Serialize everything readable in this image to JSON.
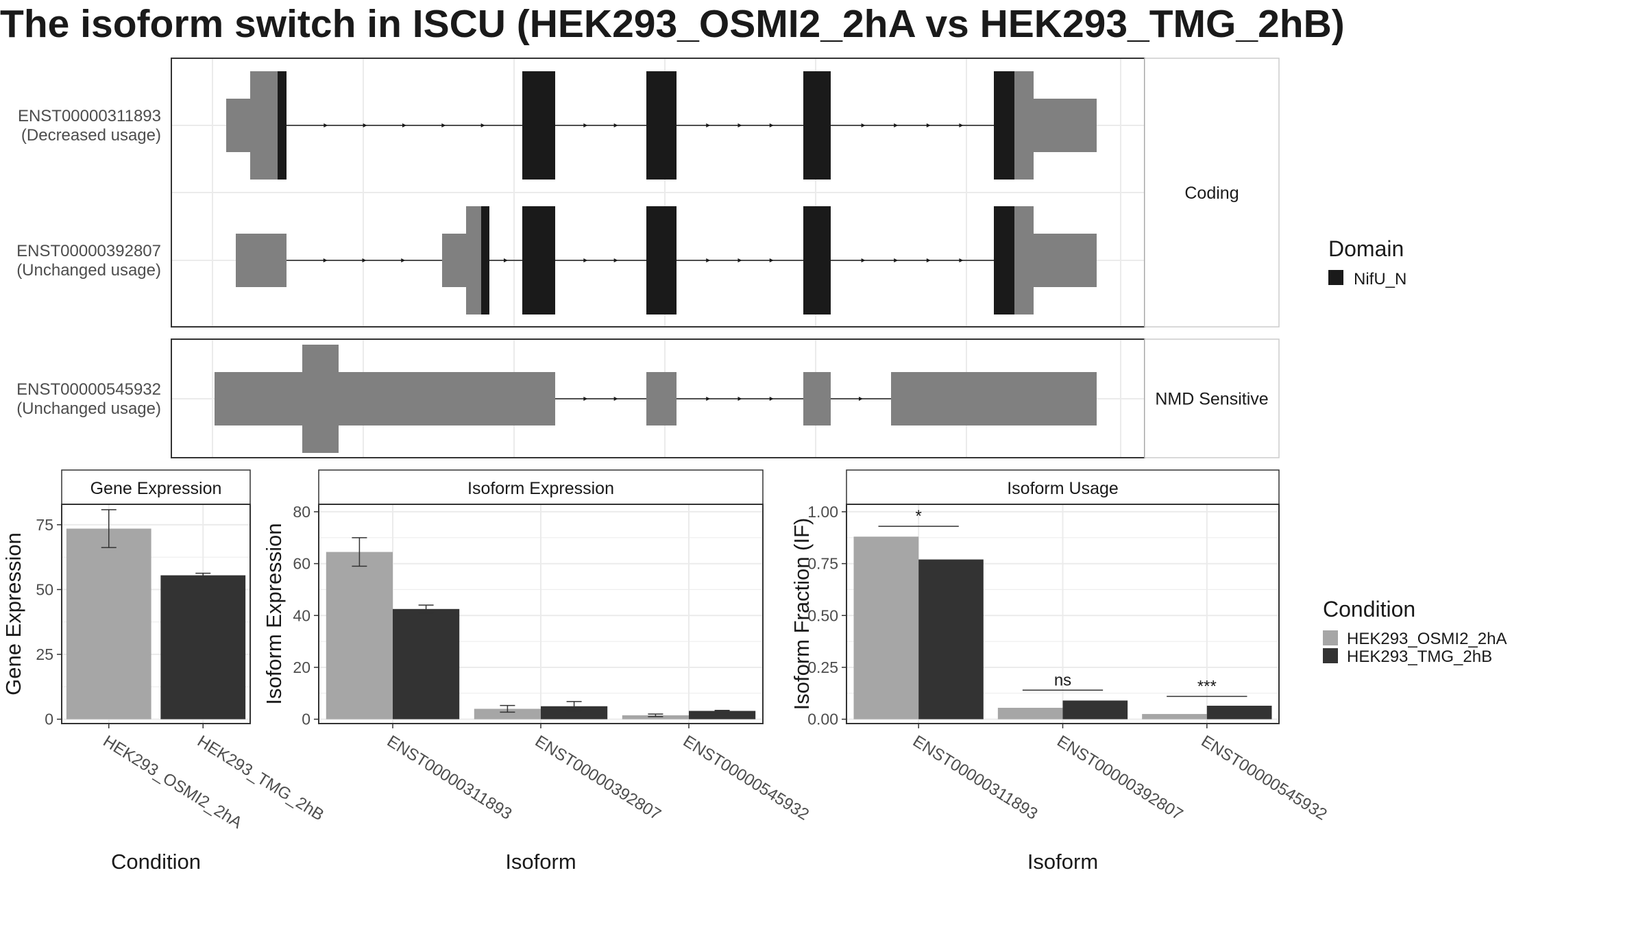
{
  "title": "The isoform switch in ISCU (HEK293_OSMI2_2hA vs HEK293_TMG_2hB)",
  "colors": {
    "domain": "#1a1a1a",
    "transcript": "#808080",
    "cond1": "#a6a6a6",
    "cond2": "#333333",
    "grid": "#ebebeb"
  },
  "transcript_panel": {
    "facets": [
      {
        "label": "Coding",
        "rows": [
          0,
          1
        ]
      },
      {
        "label": "NMD Sensitive",
        "rows": [
          2
        ]
      }
    ],
    "transcripts": [
      {
        "id": "ENST00000311893",
        "usage": "(Decreased usage)",
        "utr": [
          [
            330,
            365
          ],
          [
            1485,
            1600
          ]
        ],
        "cds": [
          [
            365,
            412
          ],
          [
            1450,
            1508
          ]
        ],
        "domain": [
          [
            405,
            418
          ],
          [
            762,
            810
          ],
          [
            943,
            987
          ],
          [
            1172,
            1212
          ],
          [
            1450,
            1480
          ]
        ],
        "introns": [
          [
            418,
            762
          ],
          [
            810,
            943
          ],
          [
            987,
            1172
          ],
          [
            1212,
            1450
          ]
        ]
      },
      {
        "id": "ENST00000392807",
        "usage": "(Unchanged usage)",
        "utr": [
          [
            344,
            418
          ],
          [
            645,
            680
          ],
          [
            1485,
            1600
          ]
        ],
        "cds": [
          [
            680,
            714
          ],
          [
            1450,
            1508
          ]
        ],
        "domain": [
          [
            702,
            714
          ],
          [
            762,
            810
          ],
          [
            943,
            987
          ],
          [
            1172,
            1212
          ],
          [
            1450,
            1480
          ]
        ],
        "introns": [
          [
            418,
            645
          ],
          [
            714,
            762
          ],
          [
            810,
            943
          ],
          [
            987,
            1172
          ],
          [
            1212,
            1450
          ]
        ]
      },
      {
        "id": "ENST00000545932",
        "usage": "(Unchanged usage)",
        "utr": [
          [
            313,
            810
          ],
          [
            943,
            987
          ],
          [
            1172,
            1212
          ],
          [
            1300,
            1600
          ]
        ],
        "cds": [
          [
            441,
            494
          ]
        ],
        "domain": [],
        "introns": [
          [
            810,
            943
          ],
          [
            987,
            1172
          ],
          [
            1212,
            1300
          ]
        ]
      }
    ],
    "legend": {
      "title": "Domain",
      "items": [
        "NifU_N"
      ]
    }
  },
  "chart_data": [
    {
      "type": "bar",
      "title": "Gene Expression",
      "xlabel": "Condition",
      "ylabel": "Gene Expression",
      "categories": [
        "HEK293_OSMI2_2hA",
        "HEK293_TMG_2hB"
      ],
      "ylim": [
        0,
        80
      ],
      "yticks": [
        0,
        25,
        50,
        75
      ],
      "series": [
        {
          "name": "HEK293_OSMI2_2hA",
          "values": [
            73.5,
            null
          ],
          "err": [
            7.3,
            null
          ]
        },
        {
          "name": "HEK293_TMG_2hB",
          "values": [
            null,
            55.5
          ],
          "err": [
            null,
            0.8
          ]
        }
      ]
    },
    {
      "type": "bar",
      "title": "Isoform Expression",
      "xlabel": "Isoform",
      "ylabel": "Isoform Expression",
      "categories": [
        "ENST00000311893",
        "ENST00000392807",
        "ENST00000545932"
      ],
      "ylim": [
        0,
        80
      ],
      "yticks": [
        0,
        20,
        40,
        60,
        80
      ],
      "series": [
        {
          "name": "HEK293_OSMI2_2hA",
          "values": [
            64.5,
            4.0,
            1.5
          ],
          "err": [
            5.5,
            1.3,
            0.5
          ]
        },
        {
          "name": "HEK293_TMG_2hB",
          "values": [
            42.5,
            5.0,
            3.2
          ],
          "err": [
            1.5,
            1.8,
            0.2
          ]
        }
      ]
    },
    {
      "type": "bar",
      "title": "Isoform Usage",
      "xlabel": "Isoform",
      "ylabel": "Isoform Fraction (IF)",
      "categories": [
        "ENST00000311893",
        "ENST00000392807",
        "ENST00000545932"
      ],
      "ylim": [
        0,
        1.0
      ],
      "yticks": [
        "0.00",
        "0.25",
        "0.50",
        "0.75",
        "1.00"
      ],
      "series": [
        {
          "name": "HEK293_OSMI2_2hA",
          "values": [
            0.88,
            0.055,
            0.025
          ]
        },
        {
          "name": "HEK293_TMG_2hB",
          "values": [
            0.77,
            0.09,
            0.065
          ]
        }
      ],
      "significance": [
        {
          "label": "*",
          "y": 0.93
        },
        {
          "label": "ns",
          "y": 0.14
        },
        {
          "label": "***",
          "y": 0.11
        }
      ]
    }
  ],
  "condition_legend": {
    "title": "Condition",
    "items": [
      "HEK293_OSMI2_2hA",
      "HEK293_TMG_2hB"
    ]
  }
}
